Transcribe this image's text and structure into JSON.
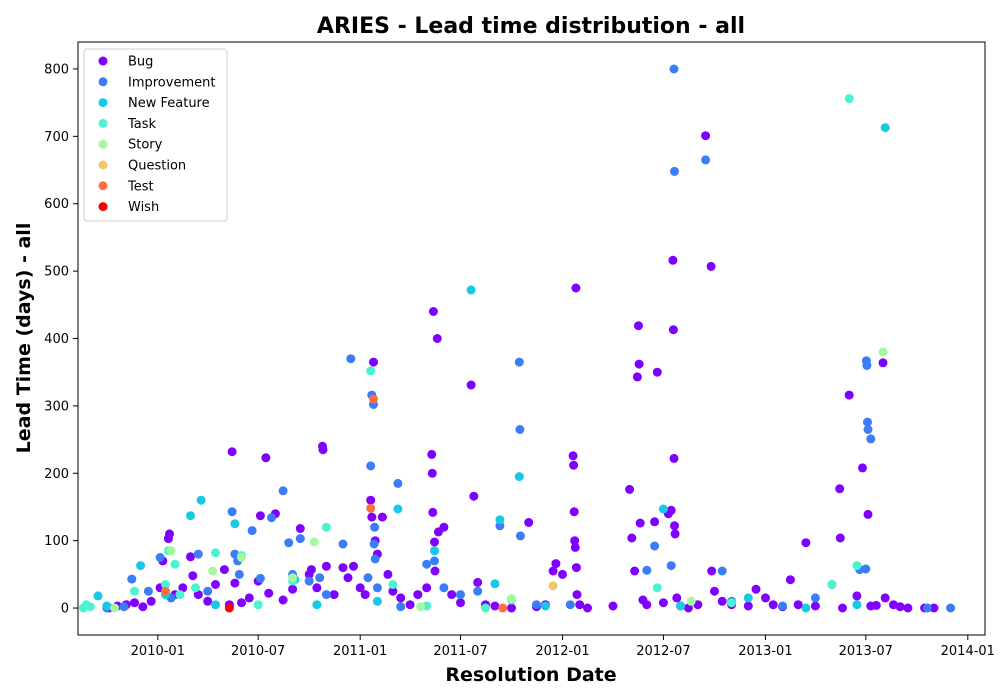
{
  "chart_data": {
    "type": "scatter",
    "title": "ARIES - Lead time distribution - all",
    "xlabel": "Resolution Date",
    "ylabel": "Lead Time (days) - all",
    "x_ticks": [
      "2010-01",
      "2010-07",
      "2011-01",
      "2011-07",
      "2012-01",
      "2012-07",
      "2013-01",
      "2013-07",
      "2014-01"
    ],
    "y_ticks": [
      0,
      100,
      200,
      300,
      400,
      500,
      600,
      700,
      800
    ],
    "xlim": [
      "2009-08-10",
      "2014-02-01"
    ],
    "ylim": [
      -40,
      840
    ],
    "legend_position": "upper-left",
    "grid": false,
    "series": [
      {
        "name": "Bug",
        "color": "#8000ff",
        "points": [
          [
            "2009-10-05",
            0
          ],
          [
            "2009-10-20",
            3
          ],
          [
            "2009-11-05",
            5
          ],
          [
            "2009-11-20",
            8
          ],
          [
            "2009-12-05",
            2
          ],
          [
            "2009-12-20",
            10
          ],
          [
            "2010-01-05",
            30
          ],
          [
            "2010-01-10",
            70
          ],
          [
            "2010-01-20",
            103
          ],
          [
            "2010-01-22",
            110
          ],
          [
            "2010-02-01",
            20
          ],
          [
            "2010-02-15",
            30
          ],
          [
            "2010-03-01",
            76
          ],
          [
            "2010-03-05",
            48
          ],
          [
            "2010-03-15",
            20
          ],
          [
            "2010-04-01",
            10
          ],
          [
            "2010-04-15",
            35
          ],
          [
            "2010-05-01",
            57
          ],
          [
            "2010-05-10",
            5
          ],
          [
            "2010-05-15",
            232
          ],
          [
            "2010-05-20",
            37
          ],
          [
            "2010-06-01",
            8
          ],
          [
            "2010-06-15",
            15
          ],
          [
            "2010-07-01",
            40
          ],
          [
            "2010-07-05",
            137
          ],
          [
            "2010-07-15",
            223
          ],
          [
            "2010-07-20",
            22
          ],
          [
            "2010-08-01",
            140
          ],
          [
            "2010-08-15",
            12
          ],
          [
            "2010-09-01",
            28
          ],
          [
            "2010-09-15",
            118
          ],
          [
            "2010-10-01",
            50
          ],
          [
            "2010-10-05",
            57
          ],
          [
            "2010-10-15",
            30
          ],
          [
            "2010-10-25",
            240
          ],
          [
            "2010-10-26",
            235
          ],
          [
            "2010-11-01",
            62
          ],
          [
            "2010-11-15",
            20
          ],
          [
            "2010-12-01",
            60
          ],
          [
            "2010-12-10",
            45
          ],
          [
            "2010-12-20",
            62
          ],
          [
            "2011-01-01",
            30
          ],
          [
            "2011-01-10",
            20
          ],
          [
            "2011-01-20",
            160
          ],
          [
            "2011-01-22",
            135
          ],
          [
            "2011-01-25",
            365
          ],
          [
            "2011-01-28",
            100
          ],
          [
            "2011-02-01",
            80
          ],
          [
            "2011-02-10",
            135
          ],
          [
            "2011-02-20",
            50
          ],
          [
            "2011-03-01",
            25
          ],
          [
            "2011-03-15",
            15
          ],
          [
            "2011-04-01",
            5
          ],
          [
            "2011-04-15",
            20
          ],
          [
            "2011-05-01",
            30
          ],
          [
            "2011-05-10",
            228
          ],
          [
            "2011-05-11",
            200
          ],
          [
            "2011-05-12",
            142
          ],
          [
            "2011-05-13",
            440
          ],
          [
            "2011-05-15",
            98
          ],
          [
            "2011-05-16",
            55
          ],
          [
            "2011-05-20",
            400
          ],
          [
            "2011-05-22",
            113
          ],
          [
            "2011-06-01",
            120
          ],
          [
            "2011-06-15",
            20
          ],
          [
            "2011-07-01",
            8
          ],
          [
            "2011-07-20",
            331
          ],
          [
            "2011-07-25",
            166
          ],
          [
            "2011-08-01",
            38
          ],
          [
            "2011-08-15",
            5
          ],
          [
            "2011-09-01",
            3
          ],
          [
            "2011-10-01",
            0
          ],
          [
            "2011-11-01",
            127
          ],
          [
            "2011-11-15",
            2
          ],
          [
            "2011-12-01",
            5
          ],
          [
            "2011-12-15",
            55
          ],
          [
            "2011-12-20",
            66
          ],
          [
            "2012-01-01",
            50
          ],
          [
            "2012-01-20",
            226
          ],
          [
            "2012-01-21",
            212
          ],
          [
            "2012-01-22",
            143
          ],
          [
            "2012-01-23",
            100
          ],
          [
            "2012-01-24",
            90
          ],
          [
            "2012-01-25",
            475
          ],
          [
            "2012-01-26",
            60
          ],
          [
            "2012-01-27",
            20
          ],
          [
            "2012-02-01",
            5
          ],
          [
            "2012-02-15",
            0
          ],
          [
            "2012-04-01",
            3
          ],
          [
            "2012-05-01",
            176
          ],
          [
            "2012-05-05",
            104
          ],
          [
            "2012-05-10",
            55
          ],
          [
            "2012-05-15",
            343
          ],
          [
            "2012-05-17",
            419
          ],
          [
            "2012-05-18",
            362
          ],
          [
            "2012-05-20",
            126
          ],
          [
            "2012-05-25",
            12
          ],
          [
            "2012-06-01",
            5
          ],
          [
            "2012-06-15",
            128
          ],
          [
            "2012-06-20",
            350
          ],
          [
            "2012-07-01",
            8
          ],
          [
            "2012-07-10",
            140
          ],
          [
            "2012-07-15",
            145
          ],
          [
            "2012-07-18",
            516
          ],
          [
            "2012-07-19",
            413
          ],
          [
            "2012-07-20",
            222
          ],
          [
            "2012-07-21",
            122
          ],
          [
            "2012-07-22",
            110
          ],
          [
            "2012-07-25",
            15
          ],
          [
            "2012-08-01",
            3
          ],
          [
            "2012-08-15",
            0
          ],
          [
            "2012-09-01",
            5
          ],
          [
            "2012-09-15",
            701
          ],
          [
            "2012-09-25",
            507
          ],
          [
            "2012-09-26",
            55
          ],
          [
            "2012-10-01",
            25
          ],
          [
            "2012-10-15",
            10
          ],
          [
            "2012-11-01",
            5
          ],
          [
            "2012-12-01",
            3
          ],
          [
            "2012-12-15",
            28
          ],
          [
            "2013-01-01",
            15
          ],
          [
            "2013-01-15",
            5
          ],
          [
            "2013-02-01",
            2
          ],
          [
            "2013-02-15",
            42
          ],
          [
            "2013-03-01",
            5
          ],
          [
            "2013-03-15",
            97
          ],
          [
            "2013-04-01",
            3
          ],
          [
            "2013-05-01",
            35
          ],
          [
            "2013-05-15",
            177
          ],
          [
            "2013-05-16",
            104
          ],
          [
            "2013-05-20",
            0
          ],
          [
            "2013-06-01",
            316
          ],
          [
            "2013-06-15",
            18
          ],
          [
            "2013-06-25",
            208
          ],
          [
            "2013-07-05",
            139
          ],
          [
            "2013-07-10",
            3
          ],
          [
            "2013-07-20",
            4
          ],
          [
            "2013-08-01",
            364
          ],
          [
            "2013-08-05",
            15
          ],
          [
            "2013-08-20",
            5
          ],
          [
            "2013-09-01",
            2
          ],
          [
            "2013-09-15",
            0
          ],
          [
            "2013-10-15",
            0
          ],
          [
            "2013-11-01",
            0
          ]
        ]
      },
      {
        "name": "Improvement",
        "color": "#3a7df7",
        "points": [
          [
            "2009-10-01",
            0
          ],
          [
            "2009-11-01",
            2
          ],
          [
            "2009-11-15",
            43
          ],
          [
            "2009-12-15",
            25
          ],
          [
            "2010-01-05",
            75
          ],
          [
            "2010-01-25",
            15
          ],
          [
            "2010-03-15",
            80
          ],
          [
            "2010-04-01",
            25
          ],
          [
            "2010-05-15",
            143
          ],
          [
            "2010-05-20",
            80
          ],
          [
            "2010-05-25",
            70
          ],
          [
            "2010-05-28",
            50
          ],
          [
            "2010-06-20",
            115
          ],
          [
            "2010-07-05",
            44
          ],
          [
            "2010-07-25",
            134
          ],
          [
            "2010-08-15",
            174
          ],
          [
            "2010-08-25",
            97
          ],
          [
            "2010-09-15",
            103
          ],
          [
            "2010-09-01",
            50
          ],
          [
            "2010-10-01",
            40
          ],
          [
            "2010-10-20",
            45
          ],
          [
            "2010-11-01",
            20
          ],
          [
            "2010-12-01",
            95
          ],
          [
            "2010-12-15",
            370
          ],
          [
            "2011-01-15",
            45
          ],
          [
            "2011-01-20",
            211
          ],
          [
            "2011-01-22",
            316
          ],
          [
            "2011-01-25",
            302
          ],
          [
            "2011-01-26",
            95
          ],
          [
            "2011-01-27",
            120
          ],
          [
            "2011-01-28",
            73
          ],
          [
            "2011-02-01",
            30
          ],
          [
            "2011-03-10",
            185
          ],
          [
            "2011-03-15",
            2
          ],
          [
            "2011-05-01",
            65
          ],
          [
            "2011-05-15",
            70
          ],
          [
            "2011-06-01",
            30
          ],
          [
            "2011-07-01",
            20
          ],
          [
            "2011-08-01",
            25
          ],
          [
            "2011-09-10",
            122
          ],
          [
            "2011-10-15",
            365
          ],
          [
            "2011-10-16",
            265
          ],
          [
            "2011-10-17",
            107
          ],
          [
            "2011-11-15",
            5
          ],
          [
            "2012-01-15",
            5
          ],
          [
            "2012-06-01",
            56
          ],
          [
            "2012-06-15",
            92
          ],
          [
            "2012-07-15",
            63
          ],
          [
            "2012-07-20",
            800
          ],
          [
            "2012-07-21",
            648
          ],
          [
            "2012-09-15",
            665
          ],
          [
            "2012-10-15",
            55
          ],
          [
            "2012-11-01",
            10
          ],
          [
            "2013-02-01",
            3
          ],
          [
            "2013-04-01",
            15
          ],
          [
            "2013-06-20",
            57
          ],
          [
            "2013-07-01",
            58
          ],
          [
            "2013-07-02",
            367
          ],
          [
            "2013-07-03",
            360
          ],
          [
            "2013-07-04",
            276
          ],
          [
            "2013-07-05",
            265
          ],
          [
            "2013-07-10",
            251
          ],
          [
            "2013-12-01",
            0
          ],
          [
            "2013-10-20",
            0
          ]
        ]
      },
      {
        "name": "New Feature",
        "color": "#18c9e6",
        "points": [
          [
            "2009-09-15",
            18
          ],
          [
            "2009-10-01",
            3
          ],
          [
            "2009-12-01",
            63
          ],
          [
            "2010-01-15",
            20
          ],
          [
            "2010-03-01",
            137
          ],
          [
            "2010-03-20",
            160
          ],
          [
            "2010-04-15",
            5
          ],
          [
            "2010-05-20",
            125
          ],
          [
            "2010-09-05",
            42
          ],
          [
            "2010-10-15",
            5
          ],
          [
            "2011-02-01",
            10
          ],
          [
            "2011-03-10",
            147
          ],
          [
            "2011-05-15",
            85
          ],
          [
            "2011-07-20",
            472
          ],
          [
            "2011-09-01",
            36
          ],
          [
            "2011-09-10",
            131
          ],
          [
            "2011-10-15",
            195
          ],
          [
            "2011-12-01",
            3
          ],
          [
            "2012-07-01",
            147
          ],
          [
            "2012-08-01",
            3
          ],
          [
            "2012-12-01",
            15
          ],
          [
            "2013-03-15",
            0
          ],
          [
            "2013-06-15",
            5
          ],
          [
            "2013-08-05",
            713
          ]
        ]
      },
      {
        "name": "Task",
        "color": "#4df3ce",
        "points": [
          [
            "2009-08-20",
            0
          ],
          [
            "2009-08-25",
            5
          ],
          [
            "2009-09-01",
            2
          ],
          [
            "2009-11-20",
            25
          ],
          [
            "2010-01-15",
            35
          ],
          [
            "2010-01-20",
            85
          ],
          [
            "2010-02-01",
            65
          ],
          [
            "2010-02-10",
            20
          ],
          [
            "2010-03-10",
            30
          ],
          [
            "2010-04-15",
            82
          ],
          [
            "2010-06-01",
            78
          ],
          [
            "2010-07-01",
            5
          ],
          [
            "2010-09-01",
            40
          ],
          [
            "2010-11-01",
            120
          ],
          [
            "2011-01-20",
            352
          ],
          [
            "2011-03-01",
            35
          ],
          [
            "2011-05-01",
            3
          ],
          [
            "2011-08-15",
            0
          ],
          [
            "2011-10-01",
            12
          ],
          [
            "2012-06-20",
            30
          ],
          [
            "2012-11-01",
            8
          ],
          [
            "2013-05-01",
            35
          ],
          [
            "2013-06-15",
            63
          ],
          [
            "2013-06-01",
            756
          ]
        ]
      },
      {
        "name": "Story",
        "color": "#a4f89f",
        "points": [
          [
            "2009-10-15",
            0
          ],
          [
            "2010-01-25",
            85
          ],
          [
            "2010-04-10",
            55
          ],
          [
            "2010-06-01",
            75
          ],
          [
            "2010-09-01",
            45
          ],
          [
            "2010-10-10",
            98
          ],
          [
            "2011-04-20",
            2
          ],
          [
            "2011-10-01",
            14
          ],
          [
            "2012-08-20",
            10
          ],
          [
            "2013-08-01",
            380
          ]
        ]
      },
      {
        "name": "Question",
        "color": "#f4c56a",
        "points": [
          [
            "2011-12-15",
            33
          ]
        ]
      },
      {
        "name": "Test",
        "color": "#ff6e41",
        "points": [
          [
            "2010-01-15",
            25
          ],
          [
            "2011-01-20",
            148
          ],
          [
            "2011-01-25",
            310
          ],
          [
            "2011-09-15",
            0
          ]
        ]
      },
      {
        "name": "Wish",
        "color": "#ff0000",
        "points": [
          [
            "2010-05-10",
            0
          ]
        ]
      }
    ]
  }
}
